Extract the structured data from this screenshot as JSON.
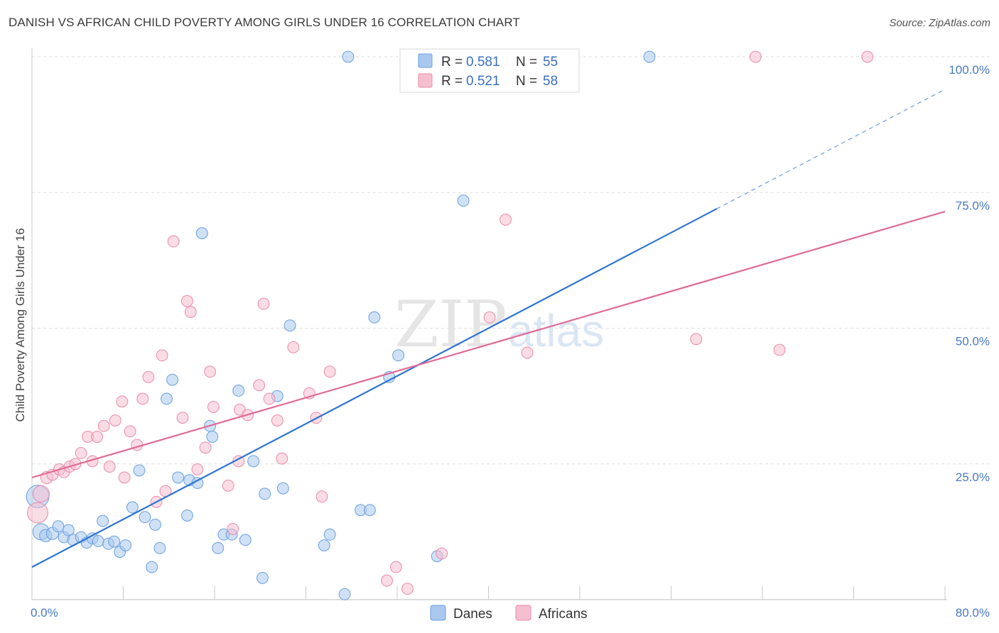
{
  "header": {
    "title": "DANISH VS AFRICAN CHILD POVERTY AMONG GIRLS UNDER 16 CORRELATION CHART",
    "source": "Source: ZipAtlas.com"
  },
  "legend": {
    "r_label": "R =",
    "n_label": "N =",
    "rows": [
      {
        "r": "0.581",
        "n": "55"
      },
      {
        "r": "0.521",
        "n": "58"
      }
    ]
  },
  "watermark": {
    "zip": "ZIP",
    "atlas": "atlas"
  },
  "colors": {
    "danes_fill": "#aac8ee",
    "danes_stroke": "#6a9fdc",
    "danes_line": "#2f74d0",
    "africans_fill": "#f6bfd0",
    "africans_stroke": "#e98aaa",
    "africans_line": "#e06a96",
    "tick_text": "#4a7ac0",
    "grid": "#dddddd"
  },
  "chart_data": {
    "type": "scatter",
    "ylabel": "Child Poverty Among Girls Under 16",
    "xlim": [
      0,
      80
    ],
    "ylim": [
      0,
      100
    ],
    "x_tick_labels": [
      {
        "value": 0,
        "label": "0.0%"
      },
      {
        "value": 80,
        "label": "80.0%"
      }
    ],
    "y_tick_labels": [
      {
        "value": 25,
        "label": "25.0%"
      },
      {
        "value": 50,
        "label": "50.0%"
      },
      {
        "value": 75,
        "label": "75.0%"
      },
      {
        "value": 100,
        "label": "100.0%"
      }
    ],
    "grid": "horizontal dashed",
    "legend_position": "top-center",
    "series": [
      {
        "name": "Danes",
        "r": 0.581,
        "n": 55,
        "trend": {
          "x0": 0,
          "y0": 6.0,
          "x1": 60,
          "y1": 72.0,
          "dashed_to_x": 80,
          "dashed_to_y": 94.0
        },
        "points": [
          [
            0.5,
            19,
            2.2
          ],
          [
            0.8,
            12.5,
            1.6
          ],
          [
            1.2,
            11.8,
            1.2
          ],
          [
            1.8,
            12.2,
            1.2
          ],
          [
            2.3,
            13.5,
            1.1
          ],
          [
            2.8,
            11.5,
            1.1
          ],
          [
            3.2,
            12.8,
            1.1
          ],
          [
            3.6,
            11,
            1.1
          ],
          [
            4.3,
            11.5,
            1.1
          ],
          [
            4.8,
            10.5,
            1.1
          ],
          [
            5.3,
            11.3,
            1.1
          ],
          [
            5.8,
            10.8,
            1.1
          ],
          [
            6.2,
            14.5,
            1.1
          ],
          [
            6.7,
            10.3,
            1.1
          ],
          [
            7.2,
            10.7,
            1.1
          ],
          [
            7.7,
            8.8,
            1.1
          ],
          [
            8.2,
            10,
            1.1
          ],
          [
            8.8,
            17,
            1.1
          ],
          [
            9.4,
            23.8,
            1.1
          ],
          [
            9.9,
            15.2,
            1.1
          ],
          [
            10.5,
            6,
            1.1
          ],
          [
            10.8,
            13.8,
            1.1
          ],
          [
            11.2,
            9.5,
            1.1
          ],
          [
            11.8,
            37,
            1.1
          ],
          [
            12.3,
            40.5,
            1.1
          ],
          [
            12.8,
            22.5,
            1.1
          ],
          [
            13.6,
            15.5,
            1.1
          ],
          [
            13.8,
            22,
            1.1
          ],
          [
            14.5,
            21.5,
            1.1
          ],
          [
            14.9,
            67.5,
            1.1
          ],
          [
            15.6,
            32,
            1.1
          ],
          [
            15.8,
            30,
            1.1
          ],
          [
            16.3,
            9.5,
            1.1
          ],
          [
            16.8,
            12,
            1.1
          ],
          [
            17.5,
            12,
            1.1
          ],
          [
            18.1,
            38.5,
            1.1
          ],
          [
            18.7,
            11,
            1.1
          ],
          [
            19.4,
            25.5,
            1.1
          ],
          [
            20.2,
            4,
            1.1
          ],
          [
            20.4,
            19.5,
            1.1
          ],
          [
            21.5,
            37.5,
            1.1
          ],
          [
            22,
            20.5,
            1.1
          ],
          [
            22.6,
            50.5,
            1.1
          ],
          [
            25.6,
            10,
            1.1
          ],
          [
            26.1,
            12,
            1.1
          ],
          [
            27.4,
            1,
            1.1
          ],
          [
            27.7,
            100,
            1.1
          ],
          [
            28.8,
            16.5,
            1.1
          ],
          [
            29.6,
            16.5,
            1.1
          ],
          [
            30,
            52,
            1.1
          ],
          [
            31.3,
            41,
            1.1
          ],
          [
            32.1,
            45,
            1.1
          ],
          [
            35.5,
            8,
            1.1
          ],
          [
            37.8,
            73.5,
            1.1
          ],
          [
            54.1,
            100,
            1.1
          ]
        ]
      },
      {
        "name": "Africans",
        "r": 0.521,
        "n": 58,
        "trend": {
          "x0": 0,
          "y0": 22.5,
          "x1": 80,
          "y1": 71.5
        },
        "points": [
          [
            0.5,
            16,
            2.0
          ],
          [
            0.8,
            19.5,
            1.6
          ],
          [
            1.3,
            22.5,
            1.2
          ],
          [
            1.8,
            23,
            1.1
          ],
          [
            2.4,
            24,
            1.1
          ],
          [
            2.8,
            23.5,
            1.1
          ],
          [
            3.3,
            24.5,
            1.1
          ],
          [
            3.8,
            25,
            1.1
          ],
          [
            4.3,
            27,
            1.1
          ],
          [
            4.9,
            30,
            1.1
          ],
          [
            5.3,
            25.5,
            1.1
          ],
          [
            5.7,
            30,
            1.1
          ],
          [
            6.3,
            32,
            1.1
          ],
          [
            6.8,
            24.5,
            1.1
          ],
          [
            7.3,
            33,
            1.1
          ],
          [
            7.9,
            36.5,
            1.1
          ],
          [
            8.1,
            22.5,
            1.1
          ],
          [
            8.6,
            31,
            1.1
          ],
          [
            9.2,
            28.5,
            1.1
          ],
          [
            9.7,
            37,
            1.1
          ],
          [
            10.2,
            41,
            1.1
          ],
          [
            10.9,
            18,
            1.1
          ],
          [
            11.4,
            45,
            1.1
          ],
          [
            11.7,
            20,
            1.1
          ],
          [
            12.4,
            66,
            1.1
          ],
          [
            13.2,
            33.5,
            1.1
          ],
          [
            13.6,
            55,
            1.1
          ],
          [
            13.9,
            53,
            1.1
          ],
          [
            14.5,
            24,
            1.1
          ],
          [
            15.2,
            28,
            1.1
          ],
          [
            15.6,
            42,
            1.1
          ],
          [
            15.9,
            35.5,
            1.1
          ],
          [
            17.2,
            21,
            1.1
          ],
          [
            17.6,
            13,
            1.1
          ],
          [
            18.1,
            25.5,
            1.1
          ],
          [
            18.2,
            35,
            1.1
          ],
          [
            18.9,
            34,
            1.1
          ],
          [
            19.9,
            39.5,
            1.1
          ],
          [
            20.3,
            54.5,
            1.1
          ],
          [
            20.8,
            37,
            1.1
          ],
          [
            21.5,
            33,
            1.1
          ],
          [
            21.9,
            26,
            1.1
          ],
          [
            22.9,
            46.5,
            1.1
          ],
          [
            24.3,
            38,
            1.1
          ],
          [
            24.9,
            33.5,
            1.1
          ],
          [
            25.4,
            19,
            1.1
          ],
          [
            26.1,
            42,
            1.1
          ],
          [
            31.1,
            3.5,
            1.1
          ],
          [
            31.9,
            6,
            1.1
          ],
          [
            32.9,
            2,
            1.1
          ],
          [
            35.9,
            8.5,
            1.1
          ],
          [
            40.1,
            52,
            1.1
          ],
          [
            41.5,
            70,
            1.1
          ],
          [
            43.4,
            45.5,
            1.1
          ],
          [
            58.2,
            48,
            1.1
          ],
          [
            63.4,
            100,
            1.1
          ],
          [
            65.5,
            46,
            1.1
          ],
          [
            73.2,
            100,
            1.1
          ]
        ]
      }
    ]
  },
  "bottom_legend": [
    {
      "label": "Danes"
    },
    {
      "label": "Africans"
    }
  ]
}
